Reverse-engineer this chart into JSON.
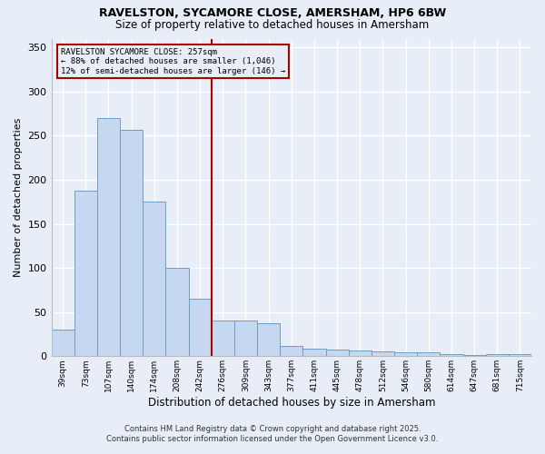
{
  "title1": "RAVELSTON, SYCAMORE CLOSE, AMERSHAM, HP6 6BW",
  "title2": "Size of property relative to detached houses in Amersham",
  "xlabel": "Distribution of detached houses by size in Amersham",
  "ylabel": "Number of detached properties",
  "bin_labels": [
    "39sqm",
    "73sqm",
    "107sqm",
    "140sqm",
    "174sqm",
    "208sqm",
    "242sqm",
    "276sqm",
    "309sqm",
    "343sqm",
    "377sqm",
    "411sqm",
    "445sqm",
    "478sqm",
    "512sqm",
    "546sqm",
    "580sqm",
    "614sqm",
    "647sqm",
    "681sqm",
    "715sqm"
  ],
  "values": [
    30,
    188,
    270,
    257,
    175,
    100,
    65,
    40,
    40,
    37,
    12,
    9,
    8,
    6,
    5,
    4,
    4,
    2,
    1,
    2,
    2
  ],
  "bar_color": "#c5d8ef",
  "bar_edge_color": "#6a9fc8",
  "bg_color": "#e8eef8",
  "grid_color": "#ffffff",
  "vline_x_index": 6,
  "vline_color": "#aa0000",
  "annotation_title": "RAVELSTON SYCAMORE CLOSE: 257sqm",
  "annotation_line1": "← 88% of detached houses are smaller (1,046)",
  "annotation_line2": "12% of semi-detached houses are larger (146) →",
  "annotation_box_color": "#aa0000",
  "footer1": "Contains HM Land Registry data © Crown copyright and database right 2025.",
  "footer2": "Contains public sector information licensed under the Open Government Licence v3.0.",
  "ylim": [
    0,
    360
  ],
  "yticks": [
    0,
    50,
    100,
    150,
    200,
    250,
    300,
    350
  ]
}
